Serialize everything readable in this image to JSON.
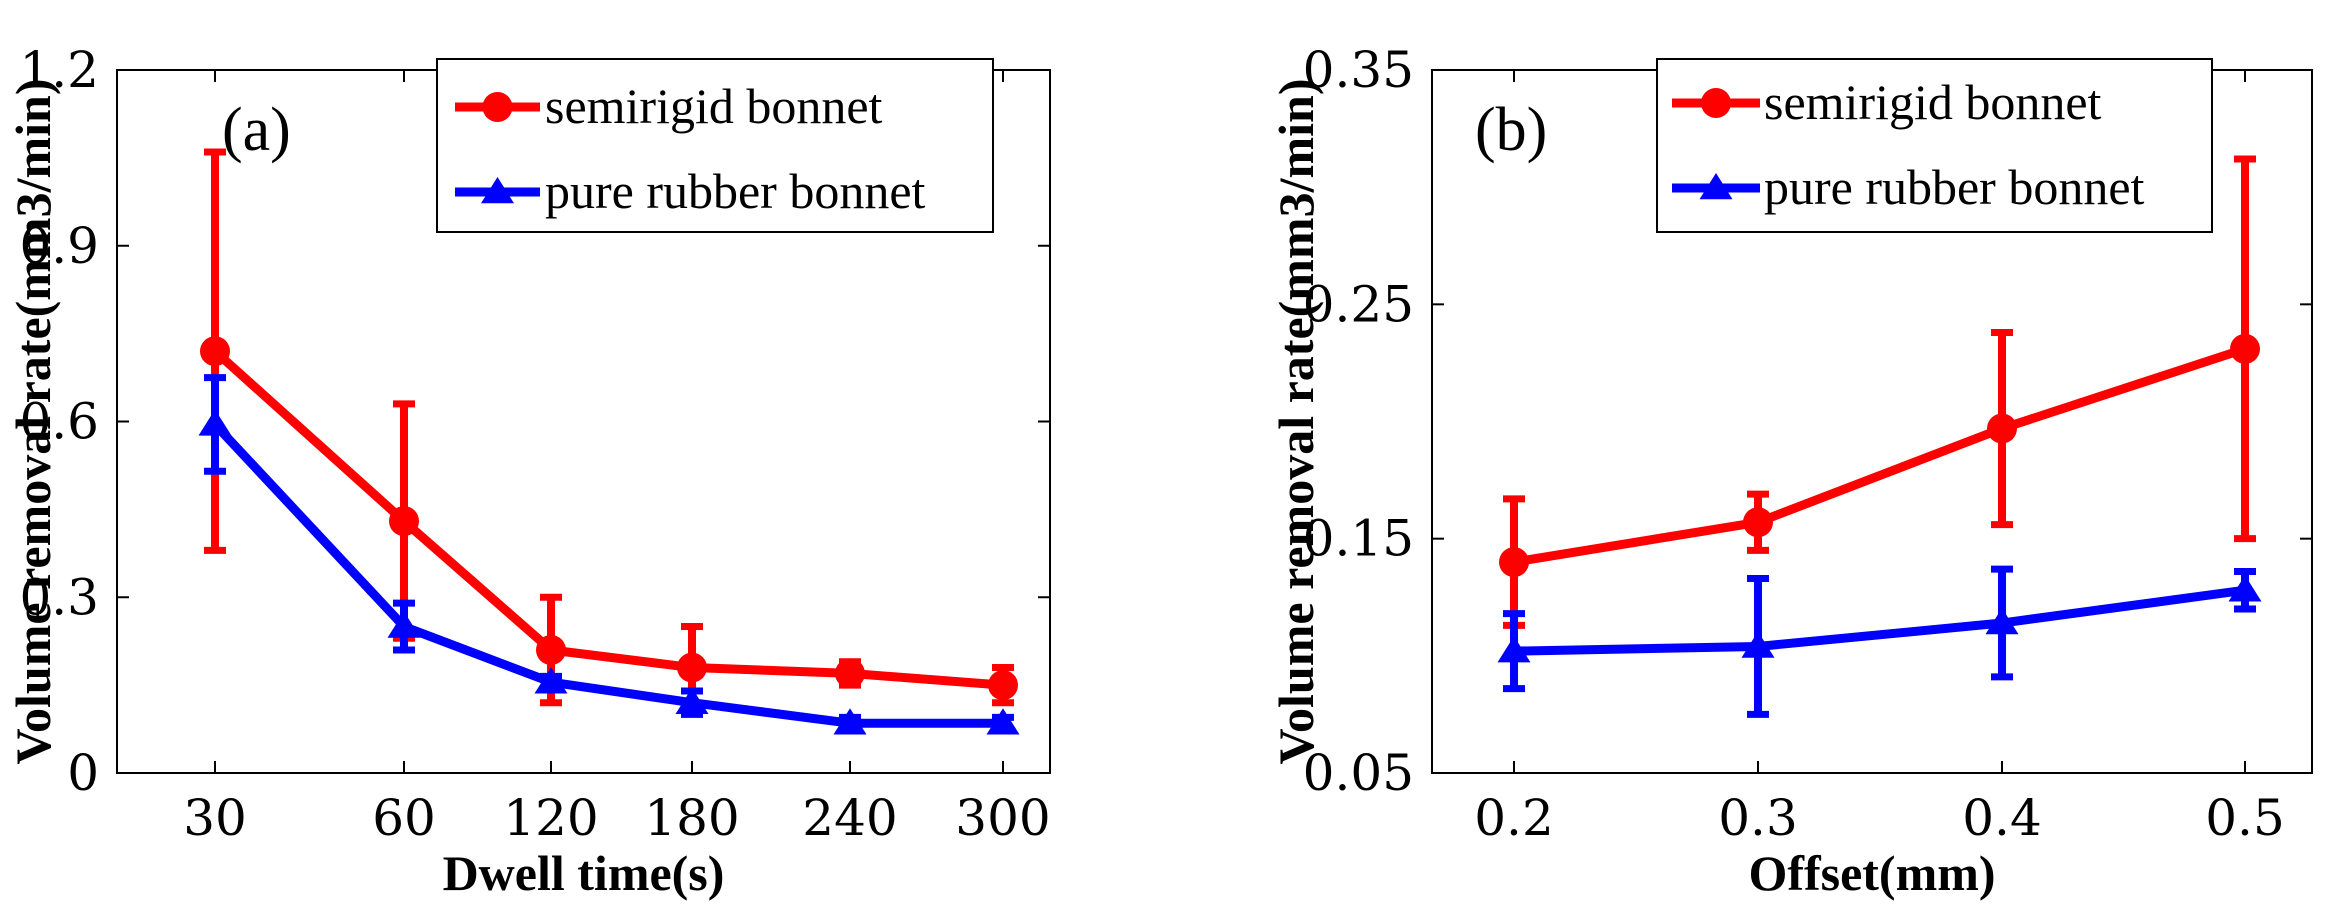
{
  "chart_data": [
    {
      "type": "line",
      "panel_label": "(a)",
      "xlabel": "Dwell time(s)",
      "ylabel": "Volume removal rate(mm3/min)",
      "categories": [
        "30",
        "60",
        "120",
        "180",
        "240",
        "300"
      ],
      "yticks": [
        "0",
        "0.3",
        "0.6",
        "0.9",
        "1.2"
      ],
      "ylim": [
        0,
        1.2
      ],
      "legend_position": "top-right",
      "series": [
        {
          "name": "semirigid bonnet",
          "color": "#ff0000",
          "marker": "circle",
          "values": [
            0.72,
            0.43,
            0.21,
            0.18,
            0.17,
            0.15
          ],
          "errors": [
            0.34,
            0.2,
            0.09,
            0.07,
            0.02,
            0.03
          ]
        },
        {
          "name": "pure rubber bonnet",
          "color": "#0000ff",
          "marker": "triangle",
          "values": [
            0.595,
            0.25,
            0.155,
            0.12,
            0.085,
            0.085
          ],
          "errors": [
            0.08,
            0.04,
            0.01,
            0.02,
            0.01,
            0.01
          ]
        }
      ]
    },
    {
      "type": "line",
      "panel_label": "(b)",
      "xlabel": "Offset(mm)",
      "ylabel": "Volume removal rate(mm3/min)",
      "categories": [
        "0.2",
        "0.3",
        "0.4",
        "0.5"
      ],
      "yticks": [
        "0.05",
        "0.15",
        "0.25",
        "0.35"
      ],
      "ylim": [
        0.05,
        0.35
      ],
      "legend_position": "top-right",
      "series": [
        {
          "name": "semirigid bonnet",
          "color": "#ff0000",
          "marker": "circle",
          "values": [
            0.14,
            0.157,
            0.197,
            0.231
          ],
          "errors": [
            0.027,
            0.012,
            0.041,
            0.081
          ]
        },
        {
          "name": "pure rubber bonnet",
          "color": "#0000ff",
          "marker": "triangle",
          "values": [
            0.102,
            0.104,
            0.114,
            0.128
          ],
          "errors": [
            0.016,
            0.029,
            0.023,
            0.008
          ]
        }
      ]
    }
  ]
}
